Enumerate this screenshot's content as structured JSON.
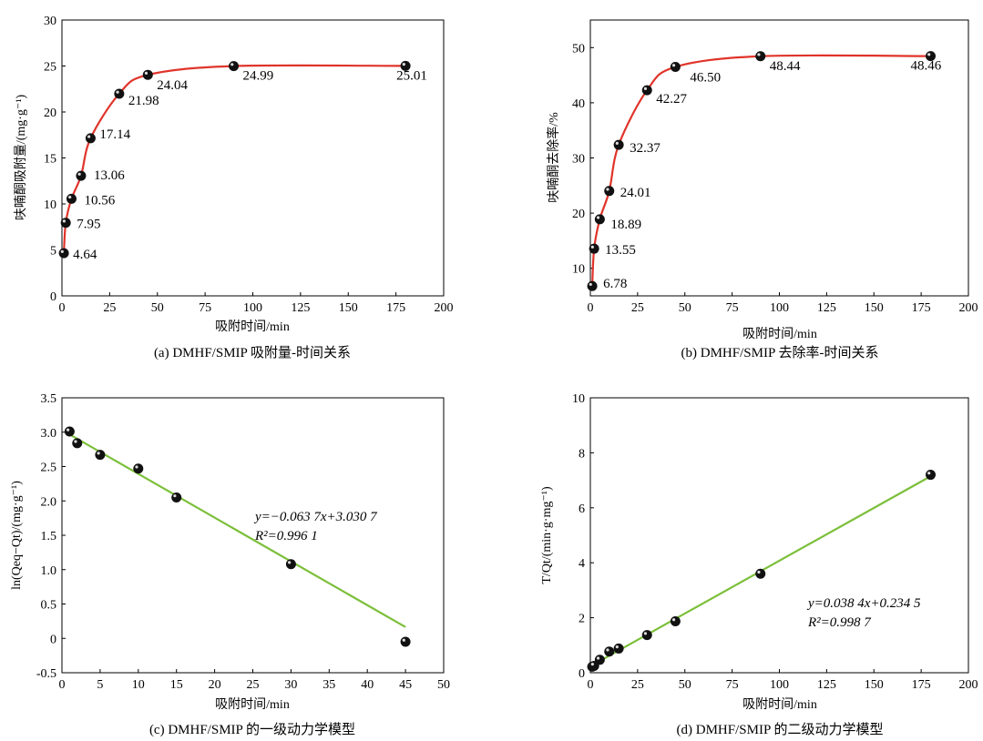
{
  "colors": {
    "curve": "#e0342a",
    "fit": "#7cbf3a",
    "axis": "#000000"
  },
  "chart_data": [
    {
      "id": "a",
      "type": "line",
      "caption": "(a) DMHF/SMIP 吸附量-时间关系",
      "xlabel": "吸附时间/min",
      "ylabel": "呋喃酮吸附量/(mg·g⁻¹)",
      "xlim": [
        0,
        200
      ],
      "ylim": [
        0,
        30
      ],
      "xticks": [
        0,
        25,
        50,
        75,
        100,
        125,
        150,
        175,
        200
      ],
      "yticks": [
        0,
        5,
        10,
        15,
        20,
        25,
        30
      ],
      "points": [
        {
          "x": 1,
          "y": 4.64,
          "label": "4.64"
        },
        {
          "x": 2,
          "y": 7.95,
          "label": "7.95"
        },
        {
          "x": 5,
          "y": 10.56,
          "label": "10.56"
        },
        {
          "x": 10,
          "y": 13.06,
          "label": "13.06"
        },
        {
          "x": 15,
          "y": 17.14,
          "label": "17.14"
        },
        {
          "x": 30,
          "y": 21.98,
          "label": "21.98"
        },
        {
          "x": 45,
          "y": 24.04,
          "label": "24.04"
        },
        {
          "x": 90,
          "y": 24.99,
          "label": "24.99"
        },
        {
          "x": 180,
          "y": 25.01,
          "label": "25.01"
        }
      ]
    },
    {
      "id": "b",
      "type": "line",
      "caption": "(b) DMHF/SMIP 去除率-时间关系",
      "xlabel": "吸附时间/min",
      "ylabel": "呋喃酮去除率/%",
      "xlim": [
        0,
        200
      ],
      "ylim": [
        5,
        55
      ],
      "xticks": [
        0,
        25,
        50,
        75,
        100,
        125,
        150,
        175,
        200
      ],
      "yticks": [
        10,
        20,
        30,
        40,
        50
      ],
      "points": [
        {
          "x": 1,
          "y": 6.78,
          "label": "6.78"
        },
        {
          "x": 2,
          "y": 13.55,
          "label": "13.55"
        },
        {
          "x": 5,
          "y": 18.89,
          "label": "18.89"
        },
        {
          "x": 10,
          "y": 24.01,
          "label": "24.01"
        },
        {
          "x": 15,
          "y": 32.37,
          "label": "32.37"
        },
        {
          "x": 30,
          "y": 42.27,
          "label": "42.27"
        },
        {
          "x": 45,
          "y": 46.5,
          "label": "46.50"
        },
        {
          "x": 90,
          "y": 48.44,
          "label": "48.44"
        },
        {
          "x": 180,
          "y": 48.46,
          "label": "48.46"
        }
      ]
    },
    {
      "id": "c",
      "type": "scatter",
      "caption": "(c) DMHF/SMIP 的一级动力学模型",
      "xlabel": "吸附时间/min",
      "ylabel": "ln(Qeq−Qt)/(mg·g⁻¹)",
      "xlim": [
        0,
        50
      ],
      "ylim": [
        -0.5,
        3.5
      ],
      "xticks": [
        0,
        5,
        10,
        15,
        20,
        25,
        30,
        35,
        40,
        45,
        50
      ],
      "yticks": [
        -0.5,
        0,
        0.5,
        1.0,
        1.5,
        2.0,
        2.5,
        3.0,
        3.5
      ],
      "ytick_labels": [
        "-0.5",
        "0",
        "0.5",
        "1.0",
        "1.5",
        "2.0",
        "2.5",
        "3.0",
        "3.5"
      ],
      "points": [
        {
          "x": 1,
          "y": 3.01
        },
        {
          "x": 2,
          "y": 2.84
        },
        {
          "x": 5,
          "y": 2.67
        },
        {
          "x": 10,
          "y": 2.47
        },
        {
          "x": 15,
          "y": 2.05
        },
        {
          "x": 30,
          "y": 1.08
        },
        {
          "x": 45,
          "y": -0.05
        }
      ],
      "fit": {
        "slope": -0.0637,
        "intercept": 3.0307,
        "x_range": [
          0.5,
          45
        ]
      },
      "equation": "y=−0.063 7x+3.030 7",
      "r2": "R²=0.996 1"
    },
    {
      "id": "d",
      "type": "scatter",
      "caption": "(d) DMHF/SMIP 的二级动力学模型",
      "xlabel": "吸附时间/min",
      "ylabel": "T/Qt/(min·g·mg⁻¹)",
      "xlim": [
        0,
        200
      ],
      "ylim": [
        0,
        10
      ],
      "xticks": [
        0,
        25,
        50,
        75,
        100,
        125,
        150,
        175,
        200
      ],
      "yticks": [
        0,
        2,
        4,
        6,
        8,
        10
      ],
      "points": [
        {
          "x": 1,
          "y": 0.22
        },
        {
          "x": 2,
          "y": 0.25
        },
        {
          "x": 5,
          "y": 0.47
        },
        {
          "x": 10,
          "y": 0.77
        },
        {
          "x": 15,
          "y": 0.88
        },
        {
          "x": 30,
          "y": 1.37
        },
        {
          "x": 45,
          "y": 1.87
        },
        {
          "x": 90,
          "y": 3.6
        },
        {
          "x": 180,
          "y": 7.2
        }
      ],
      "fit": {
        "slope": 0.0384,
        "intercept": 0.2345,
        "x_range": [
          0,
          182
        ]
      },
      "equation": "y=0.038 4x+0.234 5",
      "r2": "R²=0.998 7"
    }
  ]
}
